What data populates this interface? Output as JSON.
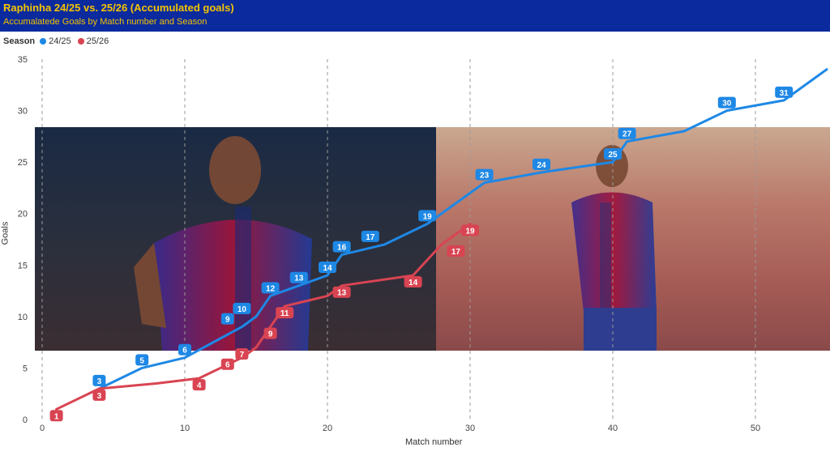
{
  "header": {
    "title": "Raphinha 24/25 vs. 25/26 (Accumulated goals)",
    "subtitle": "Accumalatede Goals by Match number and Season"
  },
  "legend": {
    "title": "Season"
  },
  "chart_data": {
    "type": "line",
    "title": "Raphinha 24/25 vs. 25/26 (Accumulated goals)",
    "subtitle": "Accumalatede Goals by Match number and Season",
    "xlabel": "Match number",
    "ylabel": "Goals",
    "xlim": [
      0,
      55
    ],
    "ylim": [
      0,
      35
    ],
    "xticks": [
      0,
      10,
      20,
      30,
      40,
      50
    ],
    "yticks": [
      0,
      5,
      10,
      15,
      20,
      25,
      30,
      35
    ],
    "vertical_gridlines": true,
    "legend_position": "top-left",
    "series": [
      {
        "name": "24/25",
        "color": "#1e88e5",
        "points": [
          [
            4,
            3
          ],
          [
            7,
            5
          ],
          [
            10,
            6
          ],
          [
            14,
            9
          ],
          [
            15,
            10
          ],
          [
            16,
            12
          ],
          [
            18,
            13
          ],
          [
            20,
            14
          ],
          [
            21,
            16
          ],
          [
            24,
            17
          ],
          [
            27,
            19
          ],
          [
            31,
            23
          ],
          [
            35,
            24
          ],
          [
            40,
            25
          ],
          [
            41,
            27
          ],
          [
            45,
            28
          ],
          [
            48,
            30
          ],
          [
            52,
            31
          ],
          [
            53,
            32
          ],
          [
            55,
            34
          ]
        ],
        "labels": [
          {
            "x": 4,
            "y": 3,
            "text": "3"
          },
          {
            "x": 7,
            "y": 5,
            "text": "5"
          },
          {
            "x": 10,
            "y": 6,
            "text": "6"
          },
          {
            "x": 13,
            "y": 9,
            "text": "9"
          },
          {
            "x": 14,
            "y": 10,
            "text": "10"
          },
          {
            "x": 16,
            "y": 12,
            "text": "12"
          },
          {
            "x": 18,
            "y": 13,
            "text": "13"
          },
          {
            "x": 20,
            "y": 14,
            "text": "14"
          },
          {
            "x": 21,
            "y": 16,
            "text": "16"
          },
          {
            "x": 23,
            "y": 17,
            "text": "17"
          },
          {
            "x": 27,
            "y": 19,
            "text": "19"
          },
          {
            "x": 31,
            "y": 23,
            "text": "23"
          },
          {
            "x": 35,
            "y": 24,
            "text": "24"
          },
          {
            "x": 40,
            "y": 25,
            "text": "25"
          },
          {
            "x": 41,
            "y": 27,
            "text": "27"
          },
          {
            "x": 48,
            "y": 30,
            "text": "30"
          },
          {
            "x": 52,
            "y": 31,
            "text": "31"
          }
        ]
      },
      {
        "name": "25/26",
        "color": "#d94452",
        "points": [
          [
            1,
            1
          ],
          [
            4,
            3
          ],
          [
            8,
            3.5
          ],
          [
            11,
            4
          ],
          [
            14,
            6
          ],
          [
            15,
            7
          ],
          [
            16,
            9
          ],
          [
            17,
            11
          ],
          [
            20,
            12
          ],
          [
            21,
            13
          ],
          [
            26,
            14
          ],
          [
            28,
            17
          ],
          [
            30,
            19
          ]
        ],
        "labels": [
          {
            "x": 1,
            "y": 1,
            "text": "1"
          },
          {
            "x": 4,
            "y": 3,
            "text": "3"
          },
          {
            "x": 11,
            "y": 4,
            "text": "4"
          },
          {
            "x": 13,
            "y": 6,
            "text": "6"
          },
          {
            "x": 14,
            "y": 7,
            "text": "7"
          },
          {
            "x": 16,
            "y": 9,
            "text": "9"
          },
          {
            "x": 17,
            "y": 11,
            "text": "11"
          },
          {
            "x": 21,
            "y": 13,
            "text": "13"
          },
          {
            "x": 26,
            "y": 14,
            "text": "14"
          },
          {
            "x": 29,
            "y": 17,
            "text": "17"
          },
          {
            "x": 30,
            "y": 19,
            "text": "19"
          }
        ]
      }
    ]
  }
}
